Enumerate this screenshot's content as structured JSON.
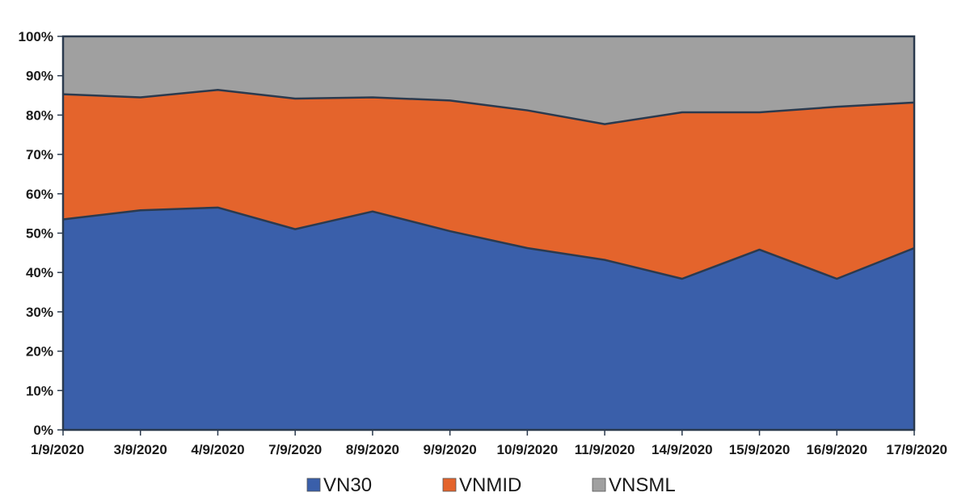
{
  "chart_data": {
    "type": "area",
    "stacked": true,
    "percent": true,
    "categories": [
      "1/9/2020",
      "3/9/2020",
      "4/9/2020",
      "7/9/2020",
      "8/9/2020",
      "9/9/2020",
      "10/9/2020",
      "11/9/2020",
      "14/9/2020",
      "15/9/2020",
      "16/9/2020",
      "17/9/2020"
    ],
    "series": [
      {
        "name": "VN30",
        "color": "#3a5faa",
        "values": [
          53.5,
          55.8,
          56.5,
          51.0,
          55.5,
          50.5,
          46.2,
          43.2,
          38.4,
          45.8,
          38.4,
          46.2
        ]
      },
      {
        "name": "VNMID",
        "color": "#e4642c",
        "values": [
          31.8,
          28.7,
          29.9,
          33.2,
          29.0,
          33.2,
          35.0,
          34.5,
          42.3,
          34.9,
          43.7,
          37.0
        ]
      },
      {
        "name": "VNSML",
        "color": "#a0a0a0",
        "values": [
          14.7,
          15.5,
          13.6,
          15.8,
          15.5,
          16.3,
          18.8,
          22.3,
          19.3,
          19.3,
          17.9,
          16.8
        ]
      }
    ],
    "yticks": [
      "0%",
      "10%",
      "20%",
      "30%",
      "40%",
      "50%",
      "60%",
      "70%",
      "80%",
      "90%",
      "100%"
    ],
    "ylim": [
      0,
      100
    ],
    "title": "",
    "xlabel": "",
    "ylabel": "",
    "legend": "bottom"
  }
}
